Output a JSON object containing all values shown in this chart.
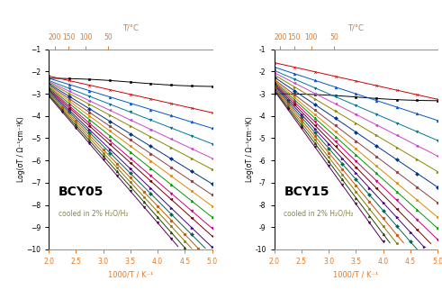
{
  "xlabel": "1000/T / K⁻¹",
  "ylabel": "Log(σT / Ω⁻¹cm⁻¹K)",
  "xlim": [
    2.0,
    5.0
  ],
  "ylim": [
    -10,
    -1
  ],
  "celsius_ticks": [
    200,
    150,
    100,
    50
  ],
  "bottom_xticks": [
    2.0,
    2.5,
    3.0,
    3.5,
    4.0,
    4.5,
    5.0
  ],
  "yticks": [
    -10,
    -9,
    -8,
    -7,
    -6,
    -5,
    -4,
    -3,
    -2,
    -1
  ],
  "label_BCY05": "BCY05",
  "label_BCY15": "BCY15",
  "annotation": "cooled in 2% H₂O/H₂",
  "orange": "#e07828",
  "bcy05_series": [
    {
      "y0": -2.3,
      "slope": -0.12,
      "flat": true,
      "color": "#000000",
      "mk": "s"
    },
    {
      "y0": -2.2,
      "slope": -0.55,
      "flat": false,
      "color": "#cc0000",
      "mk": "x"
    },
    {
      "y0": -2.3,
      "slope": -0.75,
      "flat": false,
      "color": "#0055cc",
      "mk": "^"
    },
    {
      "y0": -2.4,
      "slope": -0.95,
      "flat": false,
      "color": "#007799",
      "mk": "v"
    },
    {
      "y0": -2.45,
      "slope": -1.15,
      "flat": false,
      "color": "#cc44cc",
      "mk": "<"
    },
    {
      "y0": -2.5,
      "slope": -1.3,
      "flat": false,
      "color": "#888800",
      "mk": ">"
    },
    {
      "y0": -2.55,
      "slope": -1.5,
      "flat": false,
      "color": "#003388",
      "mk": "D"
    },
    {
      "y0": -2.6,
      "slope": -1.65,
      "flat": false,
      "color": "#884444",
      "mk": "o"
    },
    {
      "y0": -2.65,
      "slope": -1.8,
      "flat": false,
      "color": "#dd8800",
      "mk": "s"
    },
    {
      "y0": -2.7,
      "slope": -1.95,
      "flat": false,
      "color": "#009900",
      "mk": "^"
    },
    {
      "y0": -2.75,
      "slope": -2.1,
      "flat": false,
      "color": "#cc0077",
      "mk": "v"
    },
    {
      "y0": -2.8,
      "slope": -2.2,
      "flat": false,
      "color": "#770000",
      "mk": "<"
    },
    {
      "y0": -2.85,
      "slope": -2.35,
      "flat": false,
      "color": "#440088",
      "mk": ">"
    },
    {
      "y0": -2.9,
      "slope": -2.45,
      "flat": false,
      "color": "#006655",
      "mk": "D"
    },
    {
      "y0": -2.95,
      "slope": -2.55,
      "flat": false,
      "color": "#cc5500",
      "mk": "o"
    },
    {
      "y0": -3.0,
      "slope": -2.65,
      "flat": false,
      "color": "#887700",
      "mk": "s"
    },
    {
      "y0": -3.05,
      "slope": -2.75,
      "flat": false,
      "color": "#224400",
      "mk": "^"
    },
    {
      "y0": -3.1,
      "slope": -2.85,
      "flat": false,
      "color": "#550055",
      "mk": "v"
    }
  ],
  "bcy15_series": [
    {
      "y0": -3.0,
      "slope": -0.1,
      "flat": true,
      "color": "#000000",
      "mk": "s"
    },
    {
      "y0": -1.6,
      "slope": -0.55,
      "flat": false,
      "color": "#cc0000",
      "mk": "x"
    },
    {
      "y0": -1.8,
      "slope": -0.8,
      "flat": false,
      "color": "#0055cc",
      "mk": "^"
    },
    {
      "y0": -1.95,
      "slope": -1.05,
      "flat": false,
      "color": "#007799",
      "mk": "v"
    },
    {
      "y0": -2.05,
      "slope": -1.25,
      "flat": false,
      "color": "#cc44cc",
      "mk": "<"
    },
    {
      "y0": -2.15,
      "slope": -1.45,
      "flat": false,
      "color": "#888800",
      "mk": ">"
    },
    {
      "y0": -2.25,
      "slope": -1.65,
      "flat": false,
      "color": "#003388",
      "mk": "D"
    },
    {
      "y0": -2.35,
      "slope": -1.85,
      "flat": false,
      "color": "#884444",
      "mk": "o"
    },
    {
      "y0": -2.4,
      "slope": -2.05,
      "flat": false,
      "color": "#dd8800",
      "mk": "s"
    },
    {
      "y0": -2.45,
      "slope": -2.2,
      "flat": false,
      "color": "#009900",
      "mk": "^"
    },
    {
      "y0": -2.5,
      "slope": -2.35,
      "flat": false,
      "color": "#cc0077",
      "mk": "v"
    },
    {
      "y0": -2.55,
      "slope": -2.5,
      "flat": false,
      "color": "#770000",
      "mk": "<"
    },
    {
      "y0": -2.6,
      "slope": -2.65,
      "flat": false,
      "color": "#440088",
      "mk": ">"
    },
    {
      "y0": -2.65,
      "slope": -2.8,
      "flat": false,
      "color": "#006655",
      "mk": "D"
    },
    {
      "y0": -2.7,
      "slope": -2.95,
      "flat": false,
      "color": "#cc5500",
      "mk": "o"
    },
    {
      "y0": -2.75,
      "slope": -3.1,
      "flat": false,
      "color": "#887700",
      "mk": "s"
    },
    {
      "y0": -2.8,
      "slope": -3.25,
      "flat": false,
      "color": "#224400",
      "mk": "^"
    },
    {
      "y0": -2.85,
      "slope": -3.4,
      "flat": false,
      "color": "#550055",
      "mk": "v"
    }
  ],
  "annotation_color_bcy05": "#888844",
  "annotation_color_bcy15": "#888844"
}
